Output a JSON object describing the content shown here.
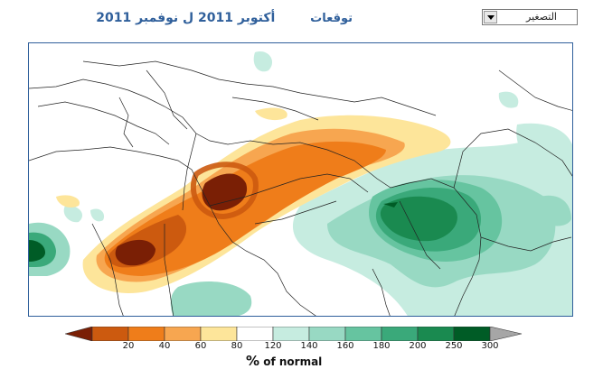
{
  "header": {
    "title_prefix": "توقعات",
    "title_period": "أكتوبر 2011 ل نوفمبر 2011"
  },
  "zoom_select": {
    "selected": "التصغير"
  },
  "legend": {
    "ticks": [
      "20",
      "40",
      "60",
      "80",
      "120",
      "140",
      "160",
      "180",
      "200",
      "250",
      "300"
    ],
    "unit_symbol": "%",
    "unit_text": "of normal",
    "colors": [
      "#7a1f05",
      "#cc5a0f",
      "#ef7d1a",
      "#f7a650",
      "#fde59a",
      "#ffffff",
      "#c6ece0",
      "#98d9c3",
      "#66c4a0",
      "#3aa97a",
      "#1a8a50",
      "#005c26",
      "#a6a6a6"
    ]
  },
  "icons": {
    "dropdown": "chevron-down-icon"
  }
}
